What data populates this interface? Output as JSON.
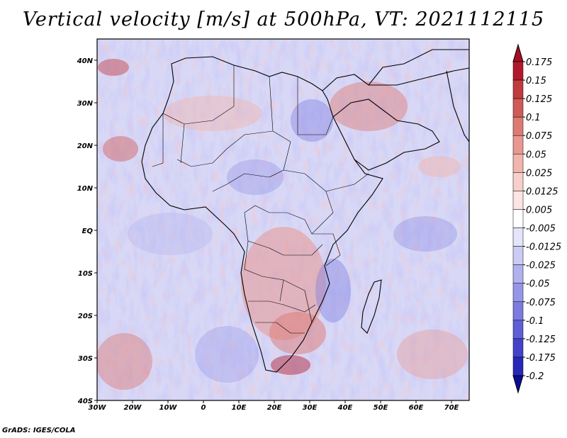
{
  "title": "Vertical velocity [m/s] at 500hPa, VT: 2021112115",
  "credit": "GrADS: IGES/COLA",
  "map": {
    "lon_range": [
      -30,
      75
    ],
    "lat_range": [
      -40,
      45
    ],
    "lon_ticks": [
      "30W",
      "20W",
      "10W",
      "0",
      "10E",
      "20E",
      "30E",
      "40E",
      "50E",
      "60E",
      "70E"
    ],
    "lat_ticks": [
      "40S",
      "30S",
      "20S",
      "10S",
      "EQ",
      "10N",
      "20N",
      "30N",
      "40N"
    ]
  },
  "colorbar": {
    "levels": [
      {
        "label": "0.175",
        "color": "#b2182b"
      },
      {
        "label": "0.15",
        "color": "#c13a3e"
      },
      {
        "label": "0.125",
        "color": "#d05a57"
      },
      {
        "label": "0.1",
        "color": "#dd7a74"
      },
      {
        "label": "0.075",
        "color": "#e89891"
      },
      {
        "label": "0.05",
        "color": "#f1b5ae"
      },
      {
        "label": "0.025",
        "color": "#f7d0cb"
      },
      {
        "label": "0.0125",
        "color": "#fbe6e3"
      },
      {
        "label": "0.005",
        "color": "#ffffff"
      },
      {
        "label": "-0.005",
        "color": "#e4e4fa"
      },
      {
        "label": "-0.0125",
        "color": "#cbcbf5"
      },
      {
        "label": "-0.025",
        "color": "#b1b1ef"
      },
      {
        "label": "-0.05",
        "color": "#9696e8"
      },
      {
        "label": "-0.075",
        "color": "#7b7be0"
      },
      {
        "label": "-0.1",
        "color": "#5f5fd6"
      },
      {
        "label": "-0.125",
        "color": "#4343ca"
      },
      {
        "label": "-0.175",
        "color": "#2727b8"
      },
      {
        "label": "-0.2",
        "color": "#1515a5"
      }
    ],
    "top_color": "#a50f23",
    "bottom_color": "#0c0c96"
  }
}
